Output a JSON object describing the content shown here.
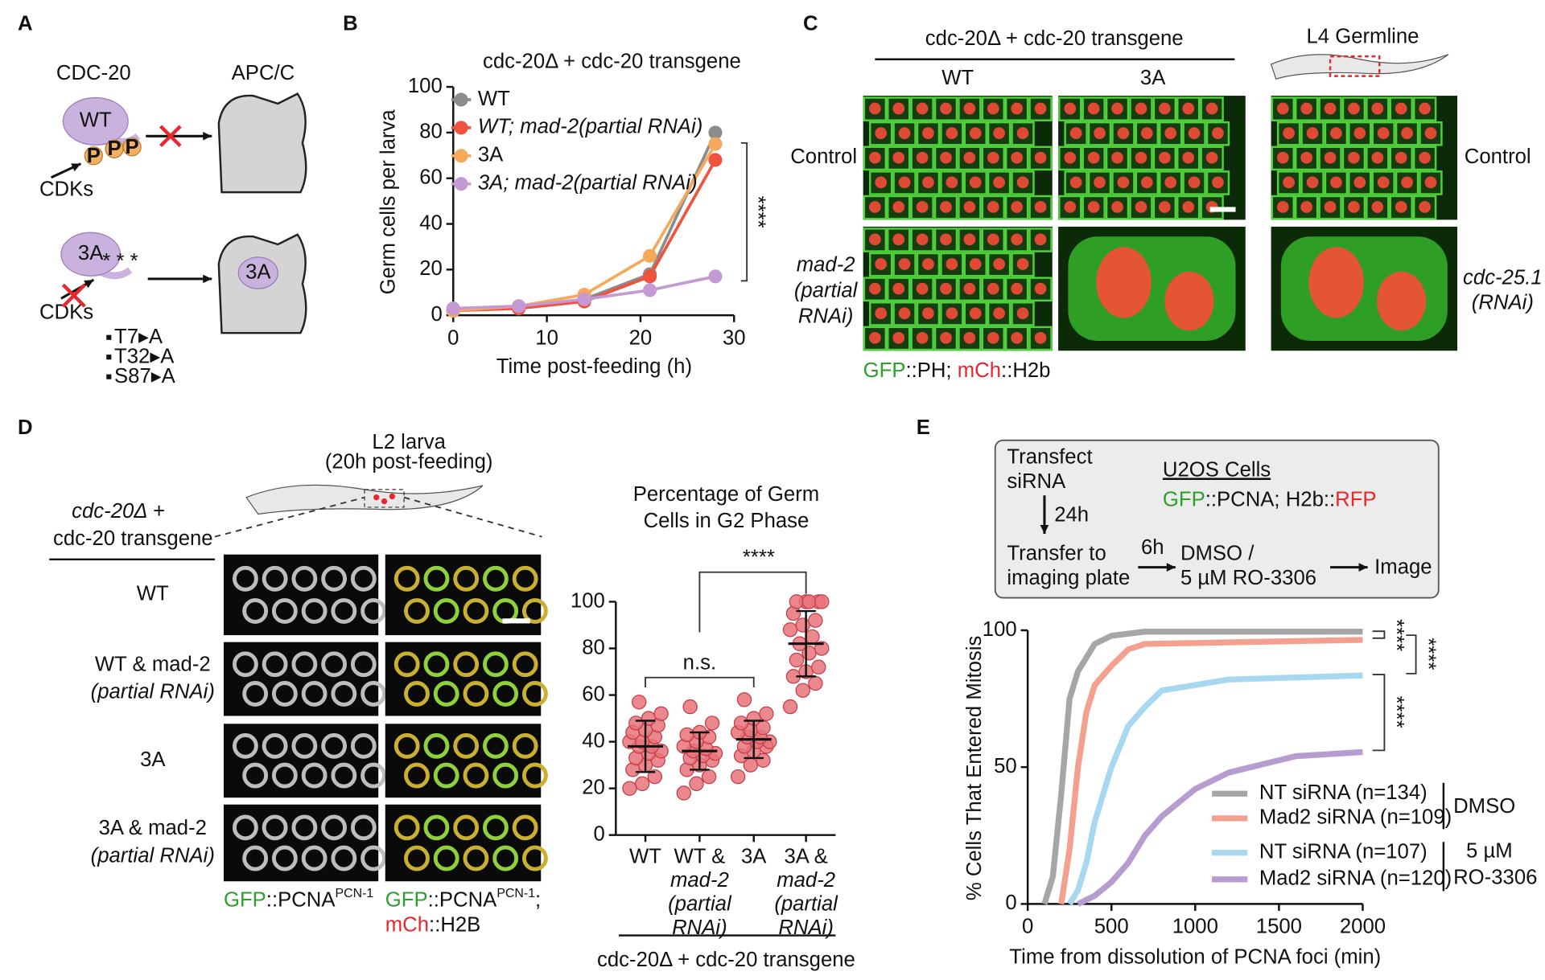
{
  "panel_labels": [
    "A",
    "B",
    "C",
    "D",
    "E"
  ],
  "panel_a": {
    "cdc20": "CDC-20",
    "apcc": "APC/C",
    "wt": "WT",
    "phospho": [
      "P",
      "P",
      "P"
    ],
    "cdks": [
      "CDKs",
      "CDKs"
    ],
    "mutant": "3A",
    "stars": "* * *",
    "mutations": [
      "T7▸A",
      "T32▸A",
      "S87▸A"
    ],
    "bound": "3A"
  },
  "panel_c": {
    "title": "cdc-20Δ + cdc-20 transgene",
    "columns": [
      "WT",
      "3A"
    ],
    "germline": "L4 Germline",
    "rows_left": [
      [
        "Control"
      ],
      [
        "mad-2",
        "(partial",
        "RNAi)"
      ]
    ],
    "rows_right": [
      [
        "Control"
      ],
      [
        "cdc-25.1",
        "(RNAi)"
      ]
    ],
    "caption": [
      "GFP",
      "::PH; ",
      "mCh",
      "::H2b"
    ]
  },
  "panel_d": {
    "larva": [
      "L2 larva",
      "(20h post-feeding)"
    ],
    "genotype": [
      "cdc-20Δ +",
      "cdc-20 transgene"
    ],
    "rows": [
      [
        "WT"
      ],
      [
        "WT & mad-2",
        "(partial RNAi)"
      ],
      [
        "3A"
      ],
      [
        "3A & mad-2",
        "(partial RNAi)"
      ]
    ],
    "caption_gray": [
      "GFP",
      "::PCNA",
      "PCN-1"
    ],
    "caption_merge": [
      [
        "GFP",
        "::PCNA",
        "PCN-1",
        ";"
      ],
      [
        "mCh",
        "::H2B"
      ]
    ]
  },
  "panel_e": {
    "step1": [
      "Transfect",
      "siRNA"
    ],
    "delay1": "24h",
    "step2": [
      "Transfer to",
      "imaging plate"
    ],
    "delay2": "6h",
    "treatment": [
      "DMSO /",
      "5 µM RO-3306"
    ],
    "step3": "Image",
    "cells": "U2OS Cells",
    "markers": [
      "GFP",
      "::PCNA; H2b::",
      "RFP"
    ]
  },
  "chart_data": [
    {
      "type": "line",
      "title": "cdc-20Δ + cdc-20 transgene",
      "xlabel": "Time post-feeding (h)",
      "ylabel": "Germ cells per larva",
      "x": [
        0,
        7,
        14,
        21,
        28
      ],
      "series": [
        {
          "name": "WT",
          "color": "#8c8c8c",
          "values": [
            2,
            3,
            7,
            18,
            80
          ]
        },
        {
          "name": "WT; mad-2(partial RNAi)",
          "color": "#f0533d",
          "values": [
            2,
            3,
            6,
            17,
            68
          ]
        },
        {
          "name": "3A",
          "color": "#f5a95a",
          "values": [
            2,
            4,
            9,
            26,
            75
          ]
        },
        {
          "name": "3A; mad-2(partial RNAi)",
          "color": "#c49ad4",
          "values": [
            3,
            4,
            7,
            11,
            17
          ]
        }
      ],
      "xlim": [
        0,
        30
      ],
      "ylim": [
        0,
        100
      ],
      "xticks": [
        0,
        10,
        20,
        30
      ],
      "yticks": [
        0,
        20,
        40,
        60,
        80,
        100
      ],
      "annotation": "****"
    },
    {
      "type": "dot",
      "title": [
        "Percentage of Germ",
        "Cells in G2 Phase"
      ],
      "categories": [
        [
          "WT"
        ],
        [
          "WT &",
          "mad-2",
          "(partial",
          "RNAi)"
        ],
        [
          "3A"
        ],
        [
          "3A &",
          "mad-2",
          "(partial",
          "RNAi)"
        ]
      ],
      "points": [
        [
          20,
          22,
          25,
          28,
          30,
          32,
          33,
          35,
          36,
          38,
          38,
          40,
          40,
          42,
          44,
          45,
          47,
          48,
          50,
          52,
          57
        ],
        [
          18,
          22,
          25,
          28,
          30,
          32,
          33,
          34,
          35,
          36,
          37,
          38,
          40,
          42,
          43,
          44,
          48,
          55
        ],
        [
          25,
          30,
          32,
          34,
          36,
          38,
          38,
          40,
          40,
          42,
          42,
          44,
          45,
          46,
          48,
          50,
          52,
          58
        ],
        [
          55,
          62,
          65,
          68,
          70,
          72,
          75,
          78,
          80,
          82,
          85,
          88,
          90,
          92,
          95,
          100,
          100,
          100,
          100,
          100
        ]
      ],
      "values": [
        38,
        36,
        41,
        82
      ],
      "errors": [
        11,
        8,
        8,
        14
      ],
      "color": "#e8737a",
      "ylim": [
        0,
        100
      ],
      "yticks": [
        0,
        20,
        40,
        60,
        80,
        100
      ],
      "annotations": [
        "n.s.",
        "****"
      ],
      "group_label": "cdc-20Δ + cdc-20 transgene"
    },
    {
      "type": "line",
      "xlabel": "Time from dissolution of PCNA foci (min)",
      "ylabel": "% Cells That Entered Mitosis",
      "series": [
        {
          "name": "NT siRNA (n=134)",
          "color": "#a6a6a6",
          "x": [
            100,
            150,
            200,
            250,
            300,
            350,
            400,
            500,
            700,
            2000
          ],
          "values": [
            0,
            10,
            40,
            75,
            85,
            90,
            95,
            98,
            99.5,
            99.5
          ]
        },
        {
          "name": "Mad2 siRNA (n=109)",
          "color": "#f4a08e",
          "x": [
            200,
            250,
            300,
            350,
            400,
            500,
            600,
            700,
            2000
          ],
          "values": [
            0,
            20,
            50,
            70,
            80,
            87,
            93,
            95,
            96.5
          ]
        },
        {
          "name": "NT siRNA (n=107)",
          "color": "#a8d8f0",
          "x": [
            250,
            300,
            350,
            400,
            500,
            600,
            700,
            800,
            1000,
            1200,
            2000
          ],
          "values": [
            0,
            5,
            15,
            30,
            50,
            65,
            72,
            78,
            80,
            82,
            83.5
          ]
        },
        {
          "name": "Mad2 siRNA (n=120)",
          "color": "#b79cd0",
          "x": [
            300,
            400,
            500,
            600,
            700,
            800,
            900,
            1000,
            1200,
            1400,
            1600,
            2000
          ],
          "values": [
            0,
            3,
            8,
            15,
            25,
            32,
            37,
            42,
            48,
            51,
            54,
            55.5
          ]
        }
      ],
      "xlim": [
        0,
        2000
      ],
      "ylim": [
        0,
        100
      ],
      "xticks": [
        0,
        500,
        1000,
        1500,
        2000
      ],
      "yticks": [
        0,
        50,
        100
      ],
      "legend_groups": [
        [
          "DMSO"
        ],
        [
          "5 µM",
          "RO-3306"
        ]
      ],
      "annotations": [
        "****",
        "****",
        "****"
      ]
    }
  ]
}
